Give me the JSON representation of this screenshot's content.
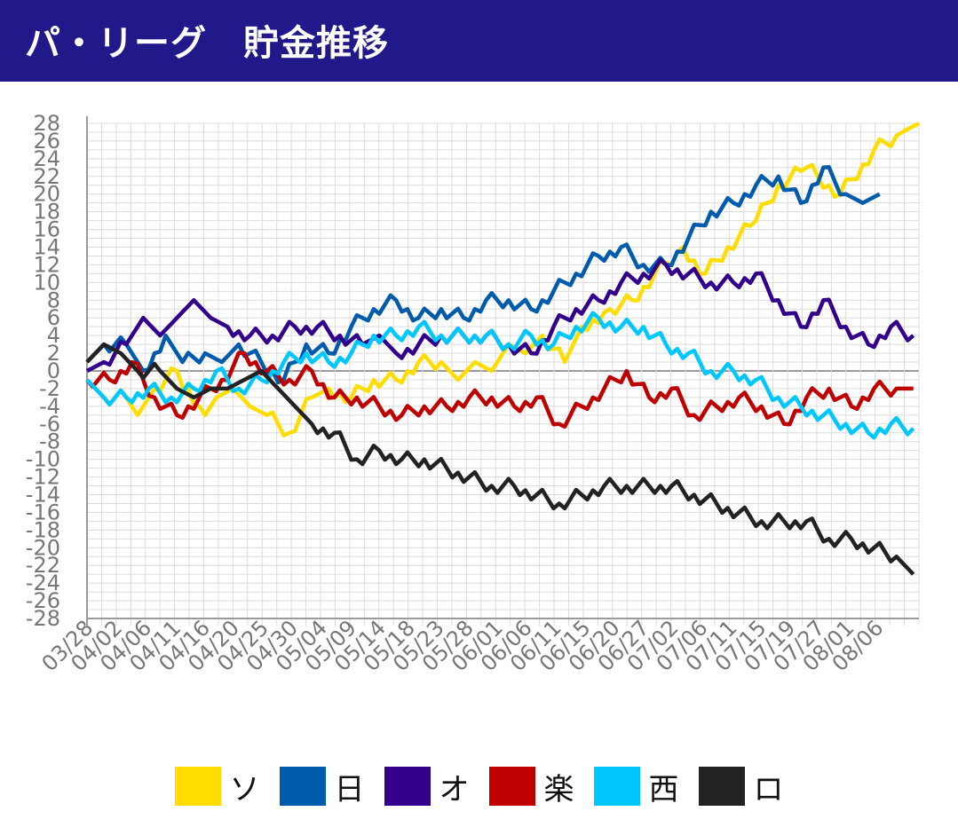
{
  "header": {
    "title": "パ・リーグ　貯金推移"
  },
  "chart_data": {
    "type": "line",
    "title": "パ・リーグ　貯金推移",
    "ylim": [
      -28,
      28
    ],
    "yticks": [
      28,
      26,
      24,
      22,
      20,
      18,
      16,
      14,
      12,
      10,
      8,
      6,
      4,
      2,
      0,
      -2,
      -4,
      -6,
      -8,
      -10,
      -12,
      -14,
      -16,
      -18,
      -20,
      -22,
      -24,
      -26,
      -28
    ],
    "xticklabels": [
      "03/28",
      "04/02",
      "04/06",
      "04/11",
      "04/16",
      "04/20",
      "04/25",
      "04/30",
      "05/04",
      "05/09",
      "05/14",
      "05/18",
      "05/23",
      "05/28",
      "06/01",
      "06/06",
      "06/11",
      "06/15",
      "06/20",
      "06/27",
      "07/02",
      "07/06",
      "07/11",
      "07/15",
      "07/19",
      "07/27",
      "08/01",
      "08/06"
    ],
    "n_games": 114,
    "grid": true,
    "series": [
      {
        "name": "ソ",
        "color": "#ffdd00",
        "keypoints": [
          [
            0,
            -1
          ],
          [
            3,
            -3
          ],
          [
            7,
            -3
          ],
          [
            9,
            -5
          ],
          [
            12,
            -2
          ],
          [
            16,
            0
          ],
          [
            21,
            -5
          ],
          [
            23,
            -3
          ],
          [
            26,
            -2
          ],
          [
            29,
            -4
          ],
          [
            32,
            -5
          ],
          [
            36,
            -7
          ],
          [
            40,
            -3
          ],
          [
            43,
            -2
          ],
          [
            47,
            -3
          ],
          [
            51,
            -1
          ],
          [
            55,
            -1
          ],
          [
            59,
            1
          ],
          [
            63,
            1
          ],
          [
            66,
            -1
          ],
          [
            69,
            1
          ],
          [
            72,
            0
          ],
          [
            75,
            3
          ],
          [
            78,
            2
          ],
          [
            81,
            4
          ],
          [
            85,
            1
          ],
          [
            88,
            5
          ],
          [
            93,
            7
          ],
          [
            97,
            8
          ],
          [
            101,
            11
          ],
          [
            106,
            14
          ],
          [
            110,
            11
          ],
          [
            114,
            14
          ],
          [
            119,
            17
          ],
          [
            123,
            21
          ],
          [
            128,
            23
          ],
          [
            134,
            20
          ],
          [
            140,
            25
          ],
          [
            145,
            27
          ],
          [
            148,
            28
          ]
        ]
      },
      {
        "name": "日",
        "color": "#005bac",
        "keypoints": [
          [
            0,
            1
          ],
          [
            3,
            3
          ],
          [
            7,
            3
          ],
          [
            10,
            0
          ],
          [
            14,
            4
          ],
          [
            17,
            1
          ],
          [
            21,
            2
          ],
          [
            24,
            1
          ],
          [
            27,
            3
          ],
          [
            31,
            1
          ],
          [
            35,
            -1
          ],
          [
            39,
            3
          ],
          [
            43,
            2
          ],
          [
            47,
            5
          ],
          [
            51,
            7
          ],
          [
            55,
            8
          ],
          [
            59,
            6
          ],
          [
            63,
            7
          ],
          [
            67,
            6
          ],
          [
            71,
            8
          ],
          [
            75,
            8
          ],
          [
            79,
            7
          ],
          [
            83,
            9
          ],
          [
            87,
            11
          ],
          [
            91,
            13
          ],
          [
            95,
            14
          ],
          [
            99,
            12
          ],
          [
            103,
            12
          ],
          [
            107,
            15
          ],
          [
            111,
            18
          ],
          [
            115,
            19
          ],
          [
            119,
            21
          ],
          [
            123,
            22
          ],
          [
            127,
            19
          ],
          [
            131,
            23
          ],
          [
            135,
            20
          ],
          [
            138,
            19
          ],
          [
            141,
            20
          ]
        ]
      },
      {
        "name": "オ",
        "color": "#33008c",
        "keypoints": [
          [
            0,
            0
          ],
          [
            3,
            1
          ],
          [
            7,
            3
          ],
          [
            10,
            6
          ],
          [
            13,
            4
          ],
          [
            16,
            6
          ],
          [
            19,
            8
          ],
          [
            22,
            6
          ],
          [
            25,
            5
          ],
          [
            29,
            4
          ],
          [
            33,
            4
          ],
          [
            37,
            5
          ],
          [
            41,
            5
          ],
          [
            45,
            4
          ],
          [
            49,
            3
          ],
          [
            52,
            4
          ],
          [
            55,
            2
          ],
          [
            59,
            3
          ],
          [
            63,
            4
          ],
          [
            67,
            4
          ],
          [
            71,
            4
          ],
          [
            75,
            3
          ],
          [
            79,
            2
          ],
          [
            83,
            5
          ],
          [
            87,
            7
          ],
          [
            91,
            8
          ],
          [
            95,
            10
          ],
          [
            99,
            11
          ],
          [
            103,
            12
          ],
          [
            107,
            11
          ],
          [
            111,
            10
          ],
          [
            115,
            10
          ],
          [
            119,
            11
          ],
          [
            123,
            8
          ],
          [
            127,
            5
          ],
          [
            131,
            8
          ],
          [
            135,
            5
          ],
          [
            139,
            3
          ],
          [
            143,
            5
          ],
          [
            147,
            4
          ]
        ]
      },
      {
        "name": "楽",
        "color": "#bf0000",
        "keypoints": [
          [
            0,
            -1
          ],
          [
            4,
            -1
          ],
          [
            8,
            1
          ],
          [
            12,
            -3
          ],
          [
            16,
            -5
          ],
          [
            20,
            -3
          ],
          [
            24,
            -1
          ],
          [
            28,
            2
          ],
          [
            32,
            0
          ],
          [
            36,
            -1
          ],
          [
            40,
            0
          ],
          [
            44,
            -3
          ],
          [
            48,
            -3
          ],
          [
            52,
            -4
          ],
          [
            56,
            -5
          ],
          [
            60,
            -4
          ],
          [
            64,
            -4
          ],
          [
            68,
            -3
          ],
          [
            72,
            -3
          ],
          [
            76,
            -4
          ],
          [
            80,
            -3
          ],
          [
            84,
            -6
          ],
          [
            88,
            -4
          ],
          [
            92,
            -2
          ],
          [
            96,
            0
          ],
          [
            100,
            -3
          ],
          [
            104,
            -2
          ],
          [
            108,
            -5
          ],
          [
            112,
            -4
          ],
          [
            116,
            -3
          ],
          [
            120,
            -4
          ],
          [
            124,
            -6
          ],
          [
            128,
            -3
          ],
          [
            132,
            -2
          ],
          [
            136,
            -4
          ],
          [
            140,
            -2
          ],
          [
            144,
            -2
          ],
          [
            147,
            -2
          ]
        ]
      },
      {
        "name": "西",
        "color": "#00c8ff",
        "keypoints": [
          [
            0,
            -1
          ],
          [
            3,
            -3
          ],
          [
            7,
            -3
          ],
          [
            11,
            -2
          ],
          [
            15,
            -3
          ],
          [
            19,
            -2
          ],
          [
            23,
            0
          ],
          [
            27,
            -2
          ],
          [
            31,
            -1
          ],
          [
            35,
            1
          ],
          [
            39,
            2
          ],
          [
            43,
            1
          ],
          [
            47,
            2
          ],
          [
            51,
            4
          ],
          [
            55,
            4
          ],
          [
            59,
            5
          ],
          [
            63,
            4
          ],
          [
            67,
            4
          ],
          [
            71,
            4
          ],
          [
            75,
            3
          ],
          [
            79,
            4
          ],
          [
            83,
            3
          ],
          [
            87,
            5
          ],
          [
            91,
            6
          ],
          [
            95,
            5
          ],
          [
            99,
            5
          ],
          [
            103,
            3
          ],
          [
            107,
            2
          ],
          [
            111,
            0
          ],
          [
            115,
            0
          ],
          [
            119,
            -1
          ],
          [
            123,
            -3
          ],
          [
            127,
            -4
          ],
          [
            131,
            -5
          ],
          [
            135,
            -6
          ],
          [
            139,
            -7
          ],
          [
            143,
            -6
          ],
          [
            147,
            -6.5
          ]
        ]
      },
      {
        "name": "ロ",
        "color": "#222222",
        "keypoints": [
          [
            0,
            1
          ],
          [
            3,
            3
          ],
          [
            6,
            2
          ],
          [
            9,
            0
          ],
          [
            13,
            0
          ],
          [
            16,
            -2
          ],
          [
            19,
            -3
          ],
          [
            22,
            -2
          ],
          [
            25,
            -2
          ],
          [
            28,
            -1
          ],
          [
            31,
            0
          ],
          [
            34,
            -2
          ],
          [
            37,
            -4
          ],
          [
            40,
            -6
          ],
          [
            44,
            -7
          ],
          [
            48,
            -10
          ],
          [
            52,
            -9
          ],
          [
            56,
            -10
          ],
          [
            60,
            -10
          ],
          [
            64,
            -11
          ],
          [
            68,
            -12
          ],
          [
            72,
            -13
          ],
          [
            76,
            -13
          ],
          [
            80,
            -14
          ],
          [
            84,
            -15
          ],
          [
            88,
            -14
          ],
          [
            92,
            -13
          ],
          [
            96,
            -13
          ],
          [
            100,
            -13
          ],
          [
            104,
            -13
          ],
          [
            108,
            -14
          ],
          [
            112,
            -15
          ],
          [
            116,
            -16
          ],
          [
            120,
            -17
          ],
          [
            124,
            -17
          ],
          [
            128,
            -17
          ],
          [
            132,
            -19
          ],
          [
            136,
            -19
          ],
          [
            140,
            -20
          ],
          [
            144,
            -21
          ],
          [
            147,
            -23
          ]
        ]
      }
    ]
  }
}
